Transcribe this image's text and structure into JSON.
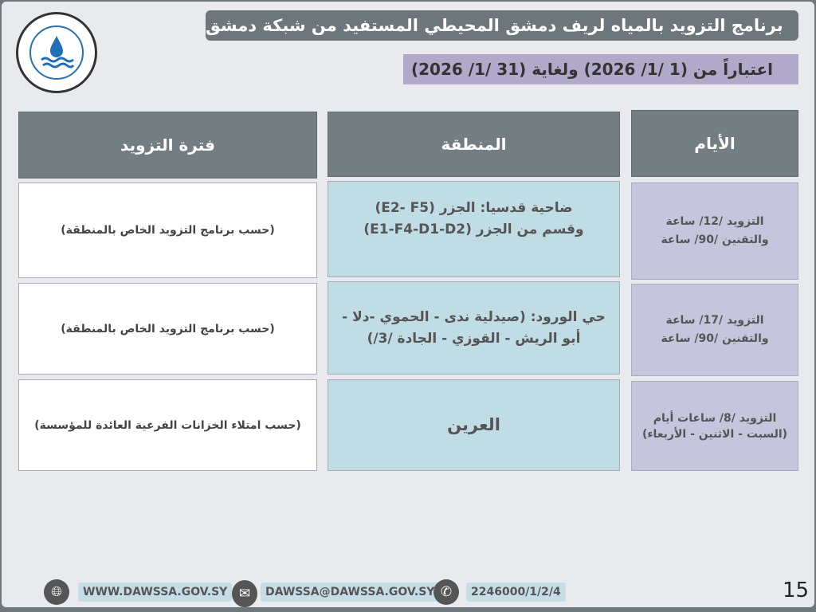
{
  "header": {
    "title": "برنامج التزويد بالمياه لريف دمشق المحيطي المستفيد من شبكة دمشق",
    "subtitle": "اعتباراً من (1 /1/ 2026) ولغاية (31 /1/ 2026)"
  },
  "table": {
    "columns": [
      "الأيام",
      "المنطقة",
      "فترة التزويد"
    ],
    "rows": [
      {
        "days": [
          "التزويد /12/ ساعة",
          "والتقنين /90/ ساعة"
        ],
        "area": [
          "ضاحية قدسيا: الجزر (E2- F5)",
          "وقسم من الجزر (E1-F4-D1-D2)"
        ],
        "period": "(حسب برنامج التزويد الخاص بالمنطقة)"
      },
      {
        "days": [
          "التزويد /17/ ساعة",
          "والتقنين /90/ ساعة"
        ],
        "area": [
          "حي الورود: (صيدلية ندى - الحموي -دلا -",
          "أبو الريش - القوزي - الجادة /3/)"
        ],
        "period": "(حسب برنامج التزويد الخاص بالمنطقة)"
      },
      {
        "days": [
          "التزويد /8/ ساعات أيام",
          "(السبت - الاثنين - الأربعاء)"
        ],
        "area": [
          "العرين"
        ],
        "period": "(حسب امتلاء الخزانات الفرعية العائدة للمؤسسة)"
      }
    ]
  },
  "footer": {
    "website": "WWW.DAWSSA.GOV.SY",
    "email": "DAWSSA@DAWSSA.GOV.SY",
    "phone": "2246000/1/2/4",
    "page_number": "15"
  },
  "icons": {
    "website": "globe-icon",
    "email": "envelope-icon",
    "phone": "phone-icon"
  },
  "colors": {
    "header": "#737e83",
    "area_cells": "#c0dce4",
    "days_cells": "#c5c5dd",
    "subtitle_bg": "#b1a9c9"
  }
}
